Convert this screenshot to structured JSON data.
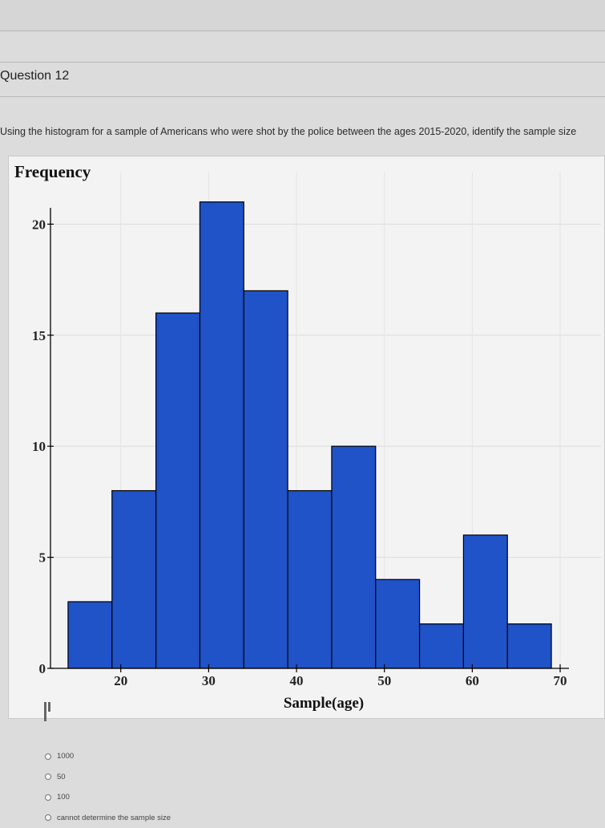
{
  "question": {
    "title": "Question 12",
    "prompt": "Using the histogram for a sample of Americans who were shot by the police between the ages 2015-2020, identify the sample size"
  },
  "chart_data": {
    "type": "bar",
    "ylabel": "Frequency",
    "xlabel": "Sample(age)",
    "xlim": [
      12,
      71
    ],
    "ylim": [
      0,
      22
    ],
    "xticks": [
      20,
      30,
      40,
      50,
      60,
      70
    ],
    "yticks": [
      0,
      5,
      10,
      15,
      20
    ],
    "bin_width": 5,
    "bins": [
      {
        "start": 14,
        "end": 19,
        "value": 3
      },
      {
        "start": 19,
        "end": 24,
        "value": 8
      },
      {
        "start": 24,
        "end": 29,
        "value": 16
      },
      {
        "start": 29,
        "end": 34,
        "value": 21
      },
      {
        "start": 34,
        "end": 39,
        "value": 17
      },
      {
        "start": 39,
        "end": 44,
        "value": 8
      },
      {
        "start": 44,
        "end": 49,
        "value": 10
      },
      {
        "start": 49,
        "end": 54,
        "value": 4
      },
      {
        "start": 54,
        "end": 59,
        "value": 2
      },
      {
        "start": 59,
        "end": 64,
        "value": 6
      },
      {
        "start": 64,
        "end": 69,
        "value": 2
      }
    ],
    "bar_color": "#2052c8",
    "bar_edge_color": "#000000",
    "grid": true
  },
  "choices": [
    {
      "label": "1000"
    },
    {
      "label": "50"
    },
    {
      "label": "100"
    },
    {
      "label": "cannot determine the sample size"
    }
  ],
  "icons": {
    "list": "list-icon"
  }
}
